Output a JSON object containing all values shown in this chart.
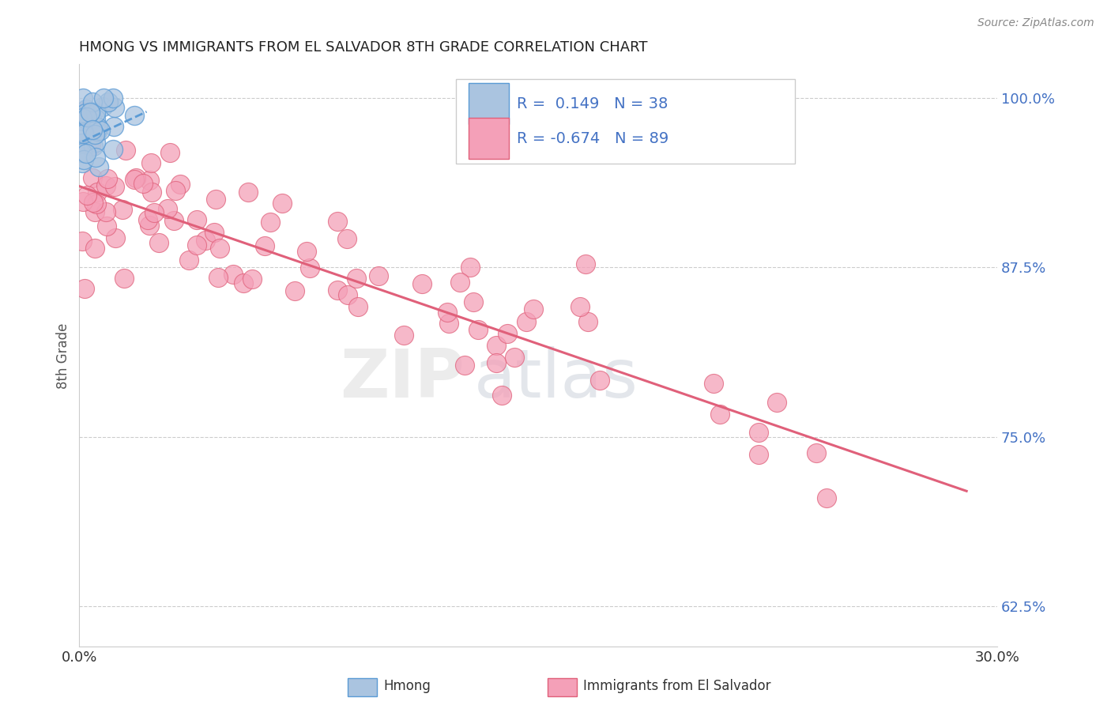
{
  "title": "HMONG VS IMMIGRANTS FROM EL SALVADOR 8TH GRADE CORRELATION CHART",
  "source": "Source: ZipAtlas.com",
  "ylabel": "8th Grade",
  "y_ticks_right": [
    0.625,
    0.75,
    0.875,
    1.0
  ],
  "y_tick_labels_right": [
    "62.5%",
    "75.0%",
    "87.5%",
    "100.0%"
  ],
  "xlim": [
    0.0,
    0.3
  ],
  "ylim": [
    0.595,
    1.025
  ],
  "hmong_R": 0.149,
  "hmong_N": 38,
  "salvador_R": -0.674,
  "salvador_N": 89,
  "hmong_color": "#aac4e0",
  "hmong_line_color": "#5b9bd5",
  "salvador_color": "#f4a0b8",
  "salvador_line_color": "#e0607a",
  "legend_label_1": "Hmong",
  "legend_label_2": "Immigrants from El Salvador",
  "salvador_trend_x0": 0.0,
  "salvador_trend_y0": 0.935,
  "salvador_trend_x1": 0.29,
  "salvador_trend_y1": 0.71,
  "hmong_trend_x0": 0.001,
  "hmong_trend_y0": 0.968,
  "hmong_trend_x1": 0.022,
  "hmong_trend_y1": 0.99
}
